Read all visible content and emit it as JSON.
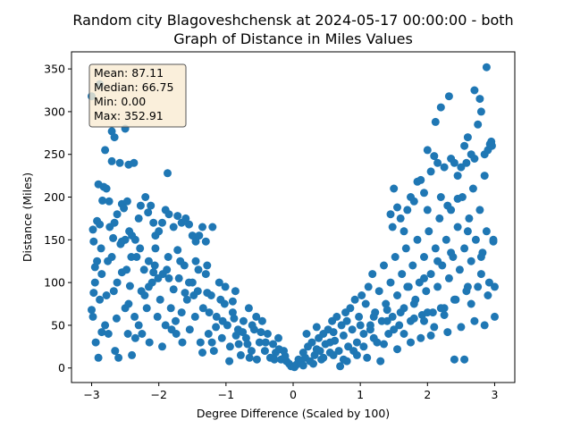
{
  "chart_data": {
    "type": "scatter",
    "title_line1": "Random city Blagoveshchensk at 2024-05-17 00:00:00  - both",
    "title_line2": "Graph of Distance in Miles Values",
    "xlabel": "Degree Difference (Scaled by 100)",
    "ylabel": "Distance (Miles)",
    "xlim": [
      -3.3,
      3.3
    ],
    "ylim": [
      -17,
      370
    ],
    "x_ticks": [
      -3,
      -2,
      -1,
      0,
      1,
      2,
      3
    ],
    "x_tick_labels": [
      "−3",
      "−2",
      "−1",
      "0",
      "1",
      "2",
      "3"
    ],
    "y_ticks": [
      0,
      50,
      100,
      150,
      200,
      250,
      300,
      350
    ],
    "y_tick_labels": [
      "0",
      "50",
      "100",
      "150",
      "200",
      "250",
      "300",
      "350"
    ],
    "grid": false,
    "marker_color": "#1f77b4",
    "stats": {
      "mean": "Mean: 87.11",
      "median": "Median: 66.75",
      "min": "Min: 0.00",
      "max": "Max: 352.91"
    },
    "stats_box": {
      "position": "top-left",
      "facecolor": "#f9ebd2",
      "edgecolor": "#555555"
    },
    "points": [
      [
        -3.0,
        318
      ],
      [
        -2.88,
        332
      ],
      [
        -2.8,
        255
      ],
      [
        -2.7,
        277
      ],
      [
        -2.66,
        270
      ],
      [
        -2.58,
        240
      ],
      [
        -2.5,
        280
      ],
      [
        -2.45,
        238
      ],
      [
        -2.37,
        240
      ],
      [
        -1.87,
        228
      ],
      [
        -2.98,
        162
      ],
      [
        -2.97,
        148
      ],
      [
        -2.95,
        118
      ],
      [
        -2.92,
        172
      ],
      [
        -2.9,
        215
      ],
      [
        -2.88,
        168
      ],
      [
        -2.86,
        140
      ],
      [
        -2.84,
        196
      ],
      [
        -2.82,
        212
      ],
      [
        -2.78,
        210
      ],
      [
        -2.76,
        125
      ],
      [
        -2.74,
        195
      ],
      [
        -2.73,
        165
      ],
      [
        -2.7,
        242
      ],
      [
        -2.66,
        170
      ],
      [
        -2.62,
        180
      ],
      [
        -2.57,
        145
      ],
      [
        -2.55,
        192
      ],
      [
        -2.52,
        187
      ],
      [
        -2.5,
        150
      ],
      [
        -2.47,
        195
      ],
      [
        -2.44,
        160
      ],
      [
        -2.4,
        155
      ],
      [
        -2.35,
        150
      ],
      [
        -2.3,
        175
      ],
      [
        -2.27,
        190
      ],
      [
        -2.2,
        200
      ],
      [
        -2.16,
        182
      ],
      [
        -2.12,
        190
      ],
      [
        -2.08,
        170
      ],
      [
        -2.05,
        155
      ],
      [
        -2.0,
        160
      ],
      [
        -1.95,
        170
      ],
      [
        -1.9,
        185
      ],
      [
        -1.85,
        180
      ],
      [
        -1.78,
        165
      ],
      [
        -1.72,
        178
      ],
      [
        -1.66,
        170
      ],
      [
        -1.6,
        175
      ],
      [
        -1.55,
        168
      ],
      [
        -1.5,
        155
      ],
      [
        -1.45,
        148
      ],
      [
        -1.4,
        155
      ],
      [
        -1.35,
        165
      ],
      [
        -1.3,
        148
      ],
      [
        -1.2,
        165
      ],
      [
        -3.0,
        68
      ],
      [
        -2.98,
        60
      ],
      [
        -2.97,
        88
      ],
      [
        -2.95,
        100
      ],
      [
        -2.94,
        30
      ],
      [
        -2.9,
        12
      ],
      [
        -2.88,
        80
      ],
      [
        -2.85,
        110
      ],
      [
        -2.8,
        50
      ],
      [
        -2.78,
        85
      ],
      [
        -2.75,
        40
      ],
      [
        -2.7,
        130
      ],
      [
        -2.67,
        90
      ],
      [
        -2.63,
        58
      ],
      [
        -2.6,
        12
      ],
      [
        -2.55,
        112
      ],
      [
        -2.5,
        70
      ],
      [
        -2.46,
        40
      ],
      [
        -2.43,
        96
      ],
      [
        -2.4,
        15
      ],
      [
        -2.36,
        60
      ],
      [
        -2.33,
        130
      ],
      [
        -2.3,
        50
      ],
      [
        -2.26,
        90
      ],
      [
        -2.22,
        115
      ],
      [
        -2.18,
        70
      ],
      [
        -2.14,
        30
      ],
      [
        -2.1,
        100
      ],
      [
        -2.06,
        120
      ],
      [
        -2.02,
        60
      ],
      [
        -1.98,
        80
      ],
      [
        -1.94,
        110
      ],
      [
        -1.9,
        50
      ],
      [
        -1.86,
        130
      ],
      [
        -1.82,
        70
      ],
      [
        -1.78,
        92
      ],
      [
        -1.74,
        40
      ],
      [
        -1.7,
        105
      ],
      [
        -1.66,
        65
      ],
      [
        -1.62,
        120
      ],
      [
        -1.58,
        80
      ],
      [
        -1.54,
        45
      ],
      [
        -1.5,
        100
      ],
      [
        -1.46,
        60
      ],
      [
        -1.42,
        90
      ],
      [
        -1.38,
        30
      ],
      [
        -1.34,
        70
      ],
      [
        -1.3,
        110
      ],
      [
        -1.26,
        40
      ],
      [
        -1.22,
        85
      ],
      [
        -1.18,
        20
      ],
      [
        -1.14,
        60
      ],
      [
        -1.1,
        100
      ],
      [
        -1.06,
        35
      ],
      [
        -1.02,
        75
      ],
      [
        -0.98,
        50
      ],
      [
        -0.94,
        25
      ],
      [
        -0.9,
        65
      ],
      [
        -0.86,
        90
      ],
      [
        -0.82,
        45
      ],
      [
        -0.78,
        15
      ],
      [
        -0.74,
        55
      ],
      [
        -0.7,
        35
      ],
      [
        -0.66,
        70
      ],
      [
        -0.62,
        20
      ],
      [
        -0.58,
        45
      ],
      [
        -0.54,
        10
      ],
      [
        -0.5,
        30
      ],
      [
        -0.46,
        55
      ],
      [
        -0.42,
        20
      ],
      [
        -0.38,
        40
      ],
      [
        -0.34,
        12
      ],
      [
        -0.3,
        28
      ],
      [
        -0.26,
        18
      ],
      [
        -0.22,
        35
      ],
      [
        -0.18,
        10
      ],
      [
        -0.14,
        20
      ],
      [
        -0.1,
        8
      ],
      [
        -0.06,
        5
      ],
      [
        -0.03,
        2
      ],
      [
        -2.65,
        20
      ],
      [
        -2.45,
        75
      ],
      [
        -2.25,
        40
      ],
      [
        -2.05,
        140
      ],
      [
        -1.85,
        105
      ],
      [
        -1.65,
        30
      ],
      [
        -1.45,
        125
      ],
      [
        -1.25,
        65
      ],
      [
        -1.05,
        55
      ],
      [
        -0.85,
        38
      ],
      [
        -2.35,
        35
      ],
      [
        -2.15,
        95
      ],
      [
        -1.95,
        25
      ],
      [
        -1.75,
        55
      ],
      [
        -1.55,
        100
      ],
      [
        -1.35,
        18
      ],
      [
        -1.15,
        48
      ],
      [
        -0.95,
        8
      ],
      [
        -0.75,
        42
      ],
      [
        -0.55,
        60
      ],
      [
        -2.85,
        42
      ],
      [
        -2.62,
        100
      ],
      [
        -2.41,
        130
      ],
      [
        -2.21,
        85
      ],
      [
        -2.01,
        105
      ],
      [
        -1.81,
        45
      ],
      [
        -1.61,
        88
      ],
      [
        -1.41,
        115
      ],
      [
        -1.21,
        30
      ],
      [
        -1.01,
        95
      ],
      [
        -0.81,
        28
      ],
      [
        -0.61,
        50
      ],
      [
        -0.41,
        30
      ],
      [
        -0.21,
        22
      ],
      [
        -2.55,
        148
      ],
      [
        -2.15,
        125
      ],
      [
        -1.72,
        138
      ],
      [
        -1.28,
        88
      ],
      [
        -0.9,
        78
      ],
      [
        -0.65,
        12
      ],
      [
        -2.92,
        125
      ],
      [
        -2.68,
        152
      ],
      [
        -2.48,
        115
      ],
      [
        -2.28,
        140
      ],
      [
        -2.08,
        112
      ],
      [
        -1.88,
        115
      ],
      [
        -1.68,
        125
      ],
      [
        -1.48,
        85
      ],
      [
        -1.28,
        120
      ],
      [
        -1.08,
        80
      ],
      [
        -0.88,
        58
      ],
      [
        -0.68,
        28
      ],
      [
        -0.48,
        42
      ],
      [
        -0.28,
        10
      ],
      [
        -0.12,
        14
      ],
      [
        0.02,
        1
      ],
      [
        0.05,
        4
      ],
      [
        0.08,
        10
      ],
      [
        0.12,
        6
      ],
      [
        0.15,
        18
      ],
      [
        0.18,
        12
      ],
      [
        0.22,
        25
      ],
      [
        0.25,
        8
      ],
      [
        0.28,
        30
      ],
      [
        0.32,
        15
      ],
      [
        0.35,
        22
      ],
      [
        0.38,
        35
      ],
      [
        0.42,
        10
      ],
      [
        0.45,
        40
      ],
      [
        0.48,
        28
      ],
      [
        0.52,
        45
      ],
      [
        0.55,
        18
      ],
      [
        0.58,
        55
      ],
      [
        0.62,
        32
      ],
      [
        0.65,
        60
      ],
      [
        0.68,
        20
      ],
      [
        0.72,
        50
      ],
      [
        0.75,
        38
      ],
      [
        0.78,
        65
      ],
      [
        0.82,
        25
      ],
      [
        0.85,
        70
      ],
      [
        0.88,
        45
      ],
      [
        0.92,
        80
      ],
      [
        0.95,
        30
      ],
      [
        0.98,
        60
      ],
      [
        1.02,
        85
      ],
      [
        1.05,
        40
      ],
      [
        1.08,
        75
      ],
      [
        1.12,
        95
      ],
      [
        1.15,
        50
      ],
      [
        1.18,
        110
      ],
      [
        1.22,
        65
      ],
      [
        1.25,
        30
      ],
      [
        1.28,
        90
      ],
      [
        1.32,
        55
      ],
      [
        1.35,
        120
      ],
      [
        1.38,
        75
      ],
      [
        1.42,
        40
      ],
      [
        1.45,
        100
      ],
      [
        1.48,
        60
      ],
      [
        1.52,
        130
      ],
      [
        1.55,
        85
      ],
      [
        1.58,
        50
      ],
      [
        1.62,
        110
      ],
      [
        1.65,
        70
      ],
      [
        1.68,
        140
      ],
      [
        1.72,
        95
      ],
      [
        1.75,
        55
      ],
      [
        1.78,
        120
      ],
      [
        1.82,
        80
      ],
      [
        1.85,
        150
      ],
      [
        1.88,
        100
      ],
      [
        1.92,
        62
      ],
      [
        1.95,
        130
      ],
      [
        1.98,
        90
      ],
      [
        2.02,
        160
      ],
      [
        2.05,
        110
      ],
      [
        2.08,
        65
      ],
      [
        2.12,
        140
      ],
      [
        2.15,
        95
      ],
      [
        2.18,
        175
      ],
      [
        2.22,
        120
      ],
      [
        2.25,
        70
      ],
      [
        2.28,
        150
      ],
      [
        2.32,
        105
      ],
      [
        2.35,
        185
      ],
      [
        2.38,
        130
      ],
      [
        2.42,
        80
      ],
      [
        2.45,
        165
      ],
      [
        2.48,
        115
      ],
      [
        2.52,
        200
      ],
      [
        2.55,
        140
      ],
      [
        2.58,
        90
      ],
      [
        2.62,
        175
      ],
      [
        2.65,
        125
      ],
      [
        2.68,
        210
      ],
      [
        2.72,
        150
      ],
      [
        2.75,
        95
      ],
      [
        2.78,
        185
      ],
      [
        2.82,
        135
      ],
      [
        2.85,
        225
      ],
      [
        2.88,
        160
      ],
      [
        2.92,
        100
      ],
      [
        2.95,
        262
      ],
      [
        2.98,
        148
      ],
      [
        1.45,
        180
      ],
      [
        1.5,
        210
      ],
      [
        1.48,
        165
      ],
      [
        1.55,
        188
      ],
      [
        1.6,
        175
      ],
      [
        1.65,
        160
      ],
      [
        1.7,
        185
      ],
      [
        1.75,
        200
      ],
      [
        1.8,
        195
      ],
      [
        1.85,
        218
      ],
      [
        1.9,
        220
      ],
      [
        1.95,
        205
      ],
      [
        2.0,
        185
      ],
      [
        2.05,
        230
      ],
      [
        2.1,
        248
      ],
      [
        2.15,
        240
      ],
      [
        2.2,
        200
      ],
      [
        2.25,
        235
      ],
      [
        2.3,
        190
      ],
      [
        2.35,
        245
      ],
      [
        2.4,
        240
      ],
      [
        2.45,
        225
      ],
      [
        2.5,
        235
      ],
      [
        2.55,
        260
      ],
      [
        2.6,
        270
      ],
      [
        2.65,
        250
      ],
      [
        2.7,
        245
      ],
      [
        2.75,
        285
      ],
      [
        2.8,
        300
      ],
      [
        2.85,
        250
      ],
      [
        2.9,
        255
      ],
      [
        2.95,
        265
      ],
      [
        2.0,
        255
      ],
      [
        2.12,
        288
      ],
      [
        2.2,
        305
      ],
      [
        2.32,
        318
      ],
      [
        2.45,
        198
      ],
      [
        2.58,
        240
      ],
      [
        2.7,
        325
      ],
      [
        2.78,
        315
      ],
      [
        2.88,
        352
      ],
      [
        2.93,
        262
      ],
      [
        2.96,
        260
      ],
      [
        0.15,
        3
      ],
      [
        0.3,
        5
      ],
      [
        0.45,
        12
      ],
      [
        0.6,
        15
      ],
      [
        0.75,
        10
      ],
      [
        0.9,
        20
      ],
      [
        1.05,
        25
      ],
      [
        1.2,
        35
      ],
      [
        1.35,
        28
      ],
      [
        1.5,
        45
      ],
      [
        1.65,
        40
      ],
      [
        1.8,
        58
      ],
      [
        1.95,
        55
      ],
      [
        2.1,
        48
      ],
      [
        2.25,
        62
      ],
      [
        2.4,
        10
      ],
      [
        2.55,
        10
      ],
      [
        2.7,
        55
      ],
      [
        2.85,
        50
      ],
      [
        3.0,
        60
      ],
      [
        0.2,
        40
      ],
      [
        0.4,
        20
      ],
      [
        0.6,
        42
      ],
      [
        0.8,
        55
      ],
      [
        1.0,
        50
      ],
      [
        1.2,
        60
      ],
      [
        1.4,
        68
      ],
      [
        1.6,
        65
      ],
      [
        1.8,
        75
      ],
      [
        2.0,
        65
      ],
      [
        2.2,
        70
      ],
      [
        2.4,
        80
      ],
      [
        2.6,
        95
      ],
      [
        2.8,
        110
      ],
      [
        3.0,
        95
      ],
      [
        0.7,
        2
      ],
      [
        0.95,
        15
      ],
      [
        1.1,
        12
      ],
      [
        1.3,
        8
      ],
      [
        1.55,
        22
      ],
      [
        1.75,
        30
      ],
      [
        1.9,
        35
      ],
      [
        2.05,
        38
      ],
      [
        2.3,
        42
      ],
      [
        2.5,
        48
      ],
      [
        2.65,
        75
      ],
      [
        2.9,
        85
      ],
      [
        0.35,
        48
      ],
      [
        0.55,
        30
      ],
      [
        0.8,
        8
      ],
      [
        1.15,
        45
      ],
      [
        1.4,
        55
      ],
      [
        1.7,
        95
      ],
      [
        1.95,
        105
      ],
      [
        2.15,
        125
      ],
      [
        2.35,
        135
      ],
      [
        2.6,
        160
      ],
      [
        2.8,
        130
      ],
      [
        2.98,
        150
      ]
    ]
  }
}
